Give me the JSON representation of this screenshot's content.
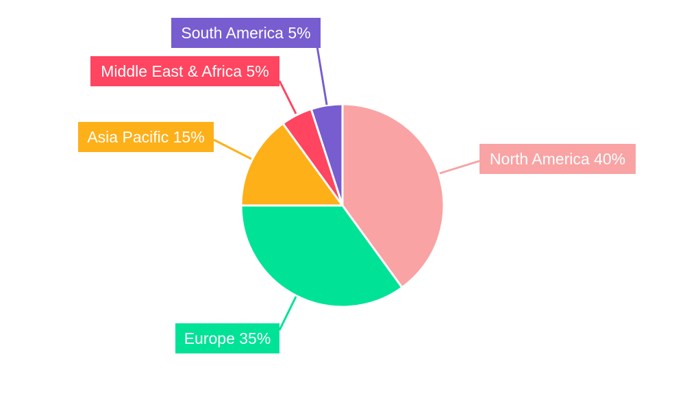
{
  "chart_data": {
    "type": "pie",
    "categories": [
      "North America",
      "Europe",
      "Asia Pacific",
      "Middle East & Africa",
      "South America"
    ],
    "values": [
      40,
      35,
      15,
      5,
      5
    ],
    "unit": "%",
    "colors": [
      "#F9A3A4",
      "#00E396",
      "#FEB019",
      "#FF4560",
      "#775DD0"
    ],
    "start_angle": "top",
    "direction": "clockwise",
    "legend": "none",
    "data_labels": "outside-boxes"
  }
}
